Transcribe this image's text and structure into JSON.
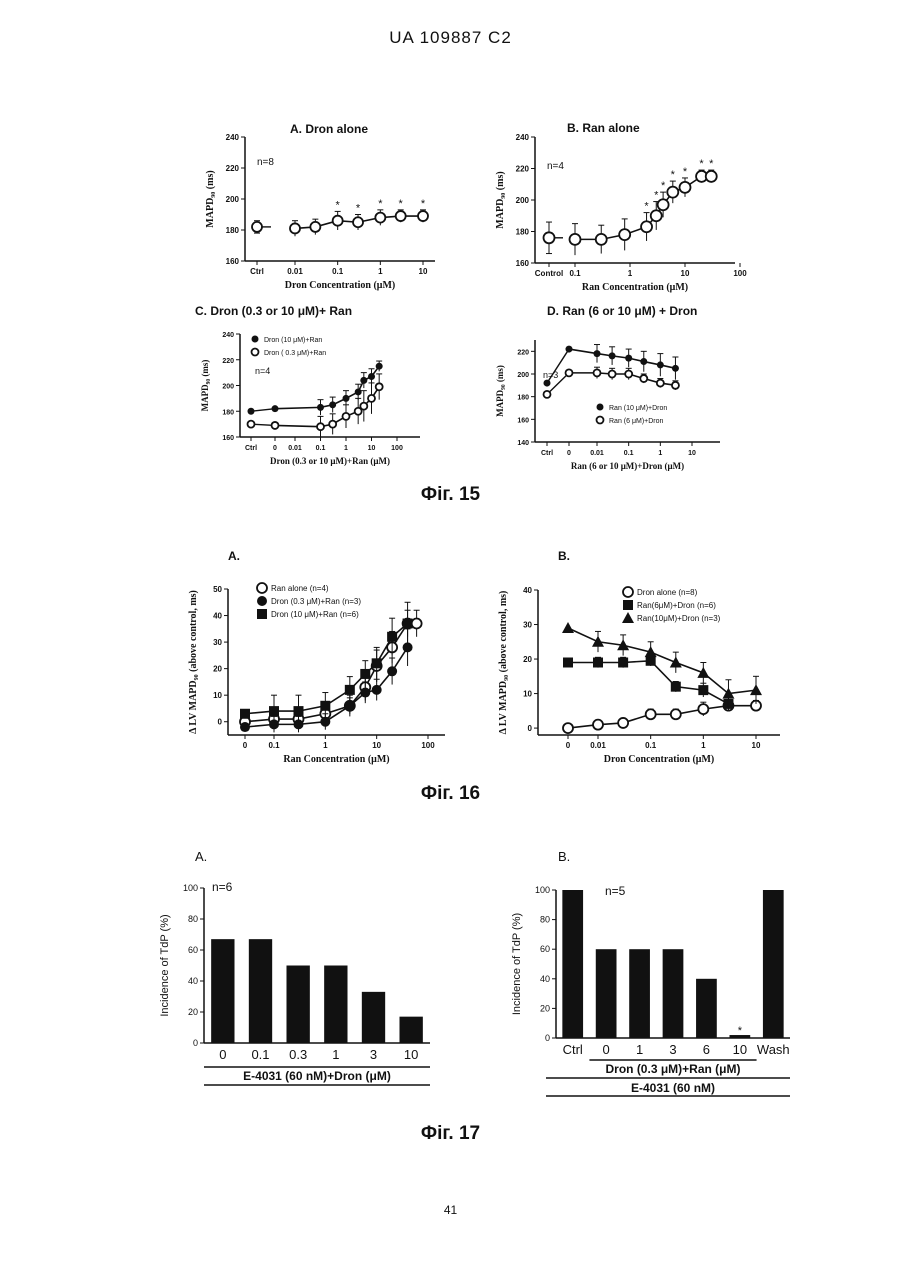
{
  "header": "UA   109887   C2",
  "page_number": "41",
  "captions": {
    "fig15": "Фіг. 15",
    "fig16": "Фіг. 16",
    "fig17": "Фіг. 17"
  },
  "chart_data": [
    {
      "id": "15A",
      "type": "line",
      "title": "A. Dron alone",
      "ylabel": "MAPD₉₀ (ms)",
      "xlabel": "Dron Concentration (μM)",
      "ylim": [
        160,
        240
      ],
      "yticks": [
        "240",
        "220",
        "200",
        "180",
        "160"
      ],
      "xticks": [
        "Ctrl",
        "0.01",
        "0.1",
        "1",
        "10"
      ],
      "annotation": "n=8",
      "series": [
        {
          "marker": "open-circle",
          "ctrl": 182,
          "ctrl_err": 4,
          "x": [
            0.01,
            0.03,
            0.1,
            0.3,
            1,
            3,
            10
          ],
          "y": [
            181,
            182,
            186,
            185,
            188,
            189,
            189
          ],
          "err": [
            5,
            5,
            6,
            5,
            5,
            4,
            4
          ],
          "sig": [
            false,
            false,
            true,
            true,
            true,
            true,
            true
          ]
        }
      ]
    },
    {
      "id": "15B",
      "type": "line",
      "title": "B. Ran alone",
      "ylabel": "MAPD₉₀ (ms)",
      "xlabel": "Ran Concentration (μM)",
      "ylim": [
        160,
        240
      ],
      "yticks": [
        "240",
        "220",
        "200",
        "180",
        "160"
      ],
      "xticks": [
        "Control",
        "0.1",
        "1",
        "10",
        "100"
      ],
      "annotation": "n=4",
      "series": [
        {
          "marker": "open-circle",
          "ctrl": 176,
          "ctrl_err": 10,
          "x": [
            0.1,
            0.3,
            0.8,
            2,
            3,
            4,
            6,
            10,
            20,
            30
          ],
          "y": [
            175,
            175,
            178,
            183,
            190,
            197,
            205,
            208,
            215,
            215
          ],
          "err": [
            10,
            9,
            10,
            9,
            9,
            8,
            7,
            6,
            4,
            4
          ],
          "sig": [
            false,
            false,
            false,
            true,
            true,
            true,
            true,
            true,
            true,
            true
          ]
        }
      ]
    },
    {
      "id": "15C",
      "type": "line",
      "title": "C. Dron (0.3  or 10 μM)+ Ran",
      "ylabel": "MAPD₉₀ (ms)",
      "xlabel": "Dron (0.3  or 10 μM)+Ran (μM)",
      "ylim": [
        160,
        240
      ],
      "yticks": [
        "240",
        "220",
        "200",
        "180",
        "160"
      ],
      "xticks": [
        "Ctrl",
        "0",
        "0.01",
        "0.1",
        "1",
        "10",
        "100"
      ],
      "annotation": "n=4",
      "legend": [
        "Dron (10 μM)+Ran",
        "Dron ( 0.3 μM)+Ran"
      ],
      "series": [
        {
          "name": "Dron (10 μM)+Ran",
          "marker": "filled-circle",
          "ctrl": 180,
          "zero": 182,
          "x": [
            0.1,
            0.3,
            1,
            3,
            5,
            10,
            20
          ],
          "y": [
            183,
            185,
            190,
            195,
            204,
            207,
            215
          ],
          "err": [
            6,
            6,
            6,
            6,
            6,
            6,
            4
          ]
        },
        {
          "name": "Dron ( 0.3 μM)+Ran",
          "marker": "open-circle",
          "ctrl": 170,
          "zero": 169,
          "x": [
            0.1,
            0.3,
            1,
            3,
            5,
            10,
            20
          ],
          "y": [
            168,
            170,
            176,
            180,
            184,
            190,
            199
          ],
          "err": [
            8,
            8,
            9,
            10,
            12,
            12,
            10
          ]
        }
      ]
    },
    {
      "id": "15D",
      "type": "line",
      "title": "D. Ran (6 or 10 μM) + Dron",
      "ylabel": "MAPD₉₀ (ms)",
      "xlabel": "Ran (6 or 10 μM)+Dron (μM)",
      "ylim": [
        140,
        230
      ],
      "yticks": [
        "220",
        "200",
        "180",
        "160",
        "140"
      ],
      "xticks": [
        "Ctrl",
        "0",
        "0.01",
        "0.1",
        "1",
        "10"
      ],
      "annotation": "n=3",
      "legend": [
        "Ran (10 μM)+Dron",
        "Ran (6 μM)+Dron"
      ],
      "series": [
        {
          "name": "Ran (10 μM)+Dron",
          "marker": "filled-circle",
          "ctrl": 192,
          "zero": 222,
          "x": [
            0.01,
            0.03,
            0.1,
            0.3,
            1,
            3
          ],
          "y": [
            218,
            216,
            214,
            211,
            208,
            205
          ],
          "err": [
            8,
            8,
            8,
            9,
            10,
            10
          ]
        },
        {
          "name": "Ran (6 μM)+Dron",
          "marker": "open-circle",
          "ctrl": 182,
          "zero": 201,
          "x": [
            0.01,
            0.03,
            0.1,
            0.3,
            1,
            3
          ],
          "y": [
            201,
            200,
            200,
            196,
            192,
            190
          ],
          "err": [
            5,
            5,
            5,
            4,
            4,
            4
          ]
        }
      ]
    },
    {
      "id": "16A",
      "type": "line",
      "title": "A.",
      "ylabel": "Δ LV MAPD₉₀ (above control, ms)",
      "xlabel": "Ran Concentration (μM)",
      "ylim": [
        -5,
        50
      ],
      "yticks": [
        "50",
        "40",
        "30",
        "20",
        "10",
        "0"
      ],
      "xticks": [
        "0",
        "0.1",
        "1",
        "10",
        "100"
      ],
      "legend": [
        "Ran alone (n=4)",
        "Dron (0.3 μM)+Ran (n=3)",
        "Dron (10 μM)+Ran (n=6)"
      ],
      "series": [
        {
          "name": "Ran alone (n=4)",
          "marker": "open-circle",
          "zero": 0,
          "x": [
            0.1,
            0.3,
            1,
            3,
            6,
            10,
            20,
            40,
            60
          ],
          "y": [
            1,
            1,
            3,
            6,
            13,
            21,
            28,
            37,
            37
          ],
          "err": [
            3,
            3,
            3,
            4,
            5,
            6,
            6,
            5,
            5
          ]
        },
        {
          "name": "Dron (0.3 μM)+Ran (n=3)",
          "marker": "filled-circle",
          "zero": -2,
          "x": [
            0.1,
            0.3,
            1,
            3,
            6,
            10,
            20,
            40
          ],
          "y": [
            -1,
            -1,
            0,
            6,
            11,
            12,
            19,
            28
          ],
          "err": [
            3,
            3,
            3,
            3,
            4,
            4,
            5,
            7
          ]
        },
        {
          "name": "Dron (10 μM)+Ran (n=6)",
          "marker": "filled-square",
          "zero": 3,
          "x": [
            0.1,
            0.3,
            1,
            3,
            6,
            10,
            20,
            40
          ],
          "y": [
            4,
            4,
            6,
            12,
            18,
            22,
            32,
            37
          ],
          "err": [
            6,
            6,
            5,
            5,
            5,
            6,
            7,
            8
          ]
        }
      ]
    },
    {
      "id": "16B",
      "type": "line",
      "title": "B.",
      "ylabel": "Δ LV MAPD₉₀ (above control, ms)",
      "xlabel": "Dron Concentration (μM)",
      "ylim": [
        -2,
        40
      ],
      "yticks": [
        "40",
        "30",
        "20",
        "10",
        "0"
      ],
      "xticks": [
        "0",
        "0.01",
        "0.1",
        "1",
        "10"
      ],
      "legend": [
        "Dron alone (n=8)",
        "Ran(6μM)+Dron (n=6)",
        "Ran(10μM)+Dron (n=3)"
      ],
      "series": [
        {
          "name": "Dron alone (n=8)",
          "marker": "open-circle",
          "zero": 0,
          "x": [
            0.01,
            0.03,
            0.1,
            0.3,
            1,
            3,
            10
          ],
          "y": [
            1,
            1.5,
            4,
            4,
            5.5,
            6.5,
            6.5
          ],
          "err": [
            1,
            1,
            1.5,
            1.5,
            2,
            1.5,
            1.5
          ]
        },
        {
          "name": "Ran(6μM)+Dron (n=6)",
          "marker": "filled-square",
          "zero": 19,
          "x": [
            0.01,
            0.03,
            0.1,
            0.3,
            1,
            3
          ],
          "y": [
            19,
            19,
            19.5,
            12,
            11,
            7
          ],
          "err": [
            1.5,
            1.5,
            1.5,
            1.5,
            2,
            2
          ]
        },
        {
          "name": "Ran(10μM)+Dron (n=3)",
          "marker": "filled-triangle",
          "zero": 29,
          "x": [
            0.01,
            0.03,
            0.1,
            0.3,
            1,
            3,
            10
          ],
          "y": [
            25,
            24,
            22,
            19,
            16,
            10,
            11
          ],
          "err": [
            3,
            3,
            3,
            3,
            3,
            4,
            4
          ]
        }
      ]
    },
    {
      "id": "17A",
      "type": "bar",
      "title": "A.",
      "ylabel": "Incidence of TdP (%)",
      "xlabel": "E-4031 (60 nM)+Dron (μM)",
      "ylim": [
        0,
        100
      ],
      "yticks": [
        "100",
        "80",
        "60",
        "40",
        "20",
        "0"
      ],
      "annotation": "n=6",
      "categories": [
        "0",
        "0.1",
        "0.3",
        "1",
        "3",
        "10"
      ],
      "values": [
        67,
        67,
        50,
        50,
        33,
        17
      ]
    },
    {
      "id": "17B",
      "type": "bar",
      "title": "B.",
      "ylabel": "Incidence of TdP (%)",
      "xlabel": "Dron (0.3 μM)+Ran (μM)",
      "xlabel2": "E-4031 (60 nM)",
      "ylim": [
        0,
        100
      ],
      "yticks": [
        "100",
        "80",
        "60",
        "40",
        "20",
        "0"
      ],
      "annotation": "n=5",
      "categories": [
        "Ctrl",
        "0",
        "1",
        "3",
        "6",
        "10",
        "Wash"
      ],
      "values": [
        100,
        60,
        60,
        60,
        40,
        2,
        100
      ]
    }
  ]
}
